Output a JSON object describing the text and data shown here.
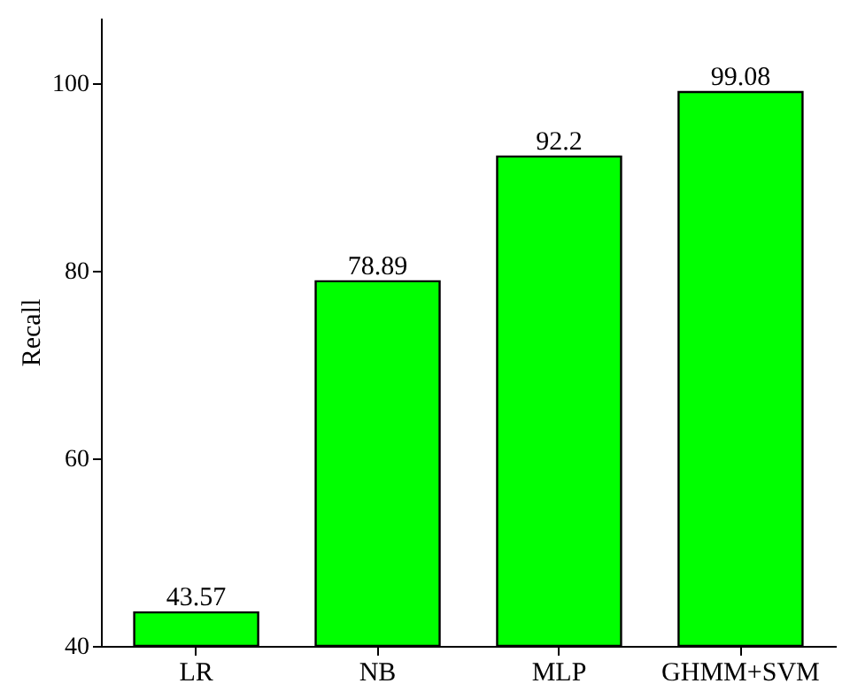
{
  "chart_data": {
    "type": "bar",
    "ylabel": "Recall",
    "categories": [
      "LR",
      "NB",
      "MLP",
      "GHMM+SVM"
    ],
    "values": [
      43.57,
      78.89,
      92.2,
      99.08
    ],
    "color": "#00ff00",
    "ylim": [
      40,
      107
    ],
    "yticks": [
      40,
      60,
      80,
      100
    ],
    "data_labels": true,
    "grid": false
  }
}
